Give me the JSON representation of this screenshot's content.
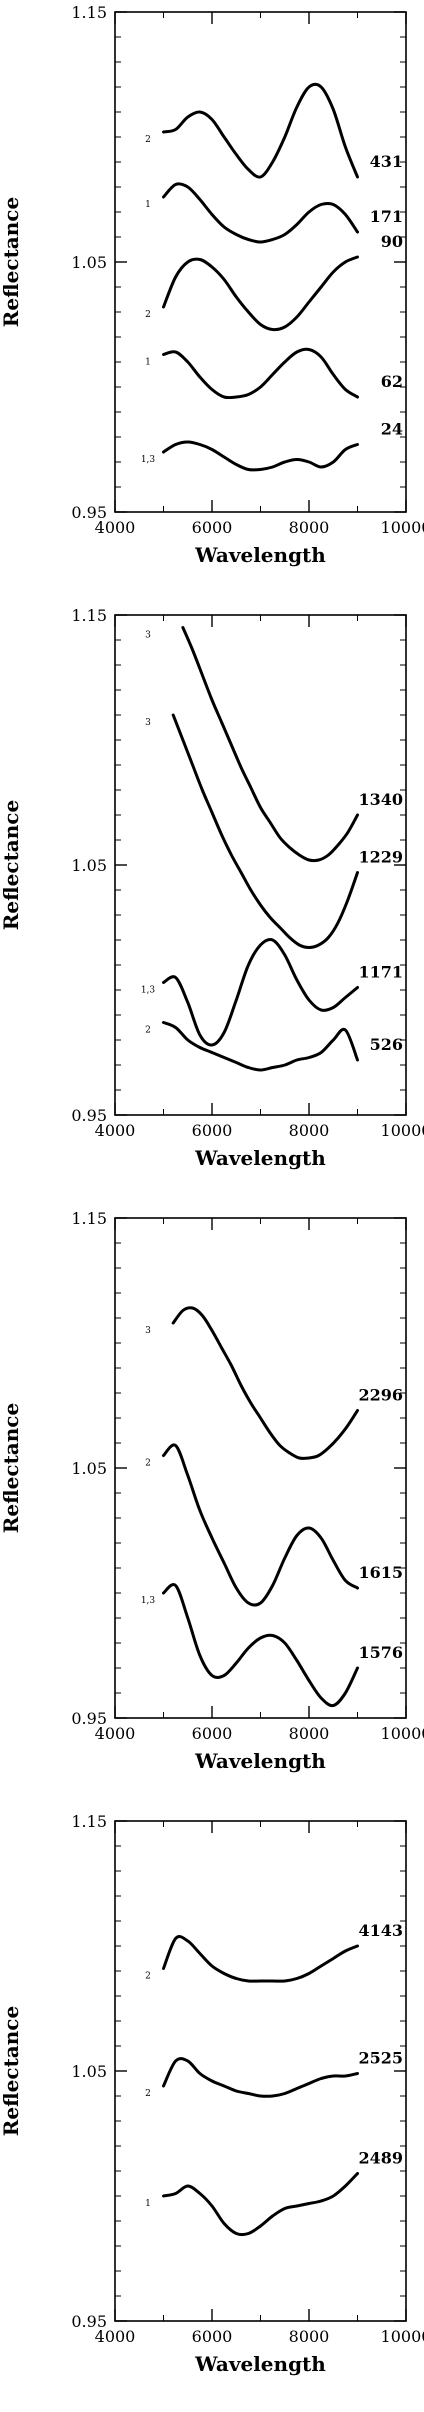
{
  "chart_data": [
    {
      "type": "line",
      "xlabel": "Wavelength",
      "ylabel": "Reflectance",
      "xlim": [
        4000,
        10000
      ],
      "ylim": [
        0.95,
        1.15
      ],
      "xticks": [
        "4000",
        "6000",
        "8000",
        "10000"
      ],
      "yticks": [
        "0.95",
        "1.05",
        "1.15"
      ],
      "series": [
        {
          "name": "431",
          "end_label": "431",
          "side_label": "2",
          "x": [
            5000,
            5250,
            5500,
            5750,
            6000,
            6250,
            6500,
            6750,
            7000,
            7250,
            7500,
            7750,
            8000,
            8250,
            8500,
            8750,
            9000
          ],
          "y": [
            1.102,
            1.103,
            1.108,
            1.11,
            1.107,
            1.1,
            1.093,
            1.087,
            1.084,
            1.09,
            1.1,
            1.112,
            1.12,
            1.12,
            1.111,
            1.096,
            1.084
          ]
        },
        {
          "name": "171",
          "end_label": "171",
          "side_label": "1",
          "x": [
            5000,
            5250,
            5500,
            5750,
            6000,
            6250,
            6500,
            6750,
            7000,
            7250,
            7500,
            7750,
            8000,
            8250,
            8500,
            8750,
            9000
          ],
          "y": [
            1.076,
            1.081,
            1.08,
            1.075,
            1.069,
            1.064,
            1.061,
            1.059,
            1.058,
            1.059,
            1.061,
            1.065,
            1.07,
            1.073,
            1.073,
            1.069,
            1.062
          ]
        },
        {
          "name": "90",
          "end_label": "90",
          "side_label": "2",
          "x": [
            5000,
            5250,
            5500,
            5750,
            6000,
            6250,
            6500,
            6750,
            7000,
            7250,
            7500,
            7750,
            8000,
            8250,
            8500,
            8750,
            9000
          ],
          "y": [
            1.032,
            1.044,
            1.05,
            1.051,
            1.048,
            1.043,
            1.036,
            1.03,
            1.025,
            1.023,
            1.024,
            1.028,
            1.034,
            1.04,
            1.046,
            1.05,
            1.052
          ]
        },
        {
          "name": "62",
          "end_label": "62",
          "side_label": "1",
          "x": [
            5000,
            5250,
            5500,
            5750,
            6000,
            6250,
            6500,
            6750,
            7000,
            7250,
            7500,
            7750,
            8000,
            8250,
            8500,
            8750,
            9000
          ],
          "y": [
            1.013,
            1.014,
            1.01,
            1.004,
            0.999,
            0.996,
            0.996,
            0.997,
            1.0,
            1.005,
            1.01,
            1.014,
            1.015,
            1.012,
            1.005,
            0.999,
            0.996
          ]
        },
        {
          "name": "24",
          "end_label": "24",
          "side_label": "1,3",
          "x": [
            5000,
            5250,
            5500,
            5750,
            6000,
            6250,
            6500,
            6750,
            7000,
            7250,
            7500,
            7750,
            8000,
            8250,
            8500,
            8750,
            9000
          ],
          "y": [
            0.974,
            0.977,
            0.978,
            0.977,
            0.975,
            0.972,
            0.969,
            0.967,
            0.967,
            0.968,
            0.97,
            0.971,
            0.97,
            0.968,
            0.97,
            0.975,
            0.977
          ]
        }
      ]
    },
    {
      "type": "line",
      "xlabel": "Wavelength",
      "ylabel": "Reflectance",
      "xlim": [
        4000,
        10000
      ],
      "ylim": [
        0.95,
        1.15
      ],
      "xticks": [
        "4000",
        "6000",
        "8000",
        "10000"
      ],
      "yticks": [
        "0.95",
        "1.05",
        "1.15"
      ],
      "series": [
        {
          "name": "1340",
          "end_label": "1340",
          "side_label": "3",
          "x": [
            5400,
            5600,
            5800,
            6000,
            6200,
            6400,
            6600,
            6800,
            7000,
            7200,
            7400,
            7600,
            7800,
            8000,
            8200,
            8400,
            8600,
            8800,
            9000
          ],
          "y": [
            1.145,
            1.136,
            1.126,
            1.116,
            1.107,
            1.098,
            1.089,
            1.081,
            1.073,
            1.067,
            1.061,
            1.057,
            1.054,
            1.052,
            1.052,
            1.054,
            1.058,
            1.063,
            1.07
          ]
        },
        {
          "name": "1229",
          "end_label": "1229",
          "side_label": "3",
          "x": [
            5200,
            5400,
            5600,
            5800,
            6000,
            6200,
            6400,
            6600,
            6800,
            7000,
            7200,
            7400,
            7600,
            7800,
            8000,
            8200,
            8400,
            8600,
            8800,
            9000
          ],
          "y": [
            1.11,
            1.1,
            1.09,
            1.08,
            1.071,
            1.062,
            1.054,
            1.047,
            1.04,
            1.034,
            1.029,
            1.025,
            1.021,
            1.018,
            1.017,
            1.018,
            1.021,
            1.027,
            1.036,
            1.047
          ]
        },
        {
          "name": "1171",
          "end_label": "1171",
          "side_label": "1,3",
          "x": [
            5000,
            5250,
            5500,
            5750,
            6000,
            6250,
            6500,
            6750,
            7000,
            7250,
            7500,
            7750,
            8000,
            8250,
            8500,
            8750,
            9000
          ],
          "y": [
            1.003,
            1.005,
            0.995,
            0.982,
            0.978,
            0.983,
            0.996,
            1.01,
            1.018,
            1.02,
            1.014,
            1.004,
            0.996,
            0.992,
            0.993,
            0.997,
            1.001
          ]
        },
        {
          "name": "526",
          "end_label": "526",
          "side_label": "2",
          "x": [
            5000,
            5250,
            5500,
            5750,
            6000,
            6250,
            6500,
            6750,
            7000,
            7250,
            7500,
            7750,
            8000,
            8250,
            8500,
            8750,
            9000
          ],
          "y": [
            0.987,
            0.985,
            0.98,
            0.977,
            0.975,
            0.973,
            0.971,
            0.969,
            0.968,
            0.969,
            0.97,
            0.972,
            0.973,
            0.975,
            0.98,
            0.984,
            0.972
          ]
        }
      ]
    },
    {
      "type": "line",
      "xlabel": "Wavelength",
      "ylabel": "Reflectance",
      "xlim": [
        4000,
        10000
      ],
      "ylim": [
        0.95,
        1.15
      ],
      "xticks": [
        "4000",
        "6000",
        "8000",
        "10000"
      ],
      "yticks": [
        "0.95",
        "1.05",
        "1.15"
      ],
      "series": [
        {
          "name": "2296",
          "end_label": "2296",
          "side_label": "3",
          "x": [
            5200,
            5400,
            5600,
            5800,
            6000,
            6200,
            6400,
            6600,
            6800,
            7000,
            7200,
            7400,
            7600,
            7800,
            8000,
            8200,
            8400,
            8600,
            8800,
            9000
          ],
          "y": [
            1.108,
            1.113,
            1.114,
            1.111,
            1.105,
            1.098,
            1.091,
            1.083,
            1.076,
            1.07,
            1.064,
            1.059,
            1.056,
            1.054,
            1.054,
            1.055,
            1.058,
            1.062,
            1.067,
            1.073
          ]
        },
        {
          "name": "1615",
          "end_label": "1615",
          "side_label": "2",
          "x": [
            5000,
            5250,
            5500,
            5750,
            6000,
            6250,
            6500,
            6750,
            7000,
            7250,
            7500,
            7750,
            8000,
            8250,
            8500,
            8750,
            9000
          ],
          "y": [
            1.055,
            1.059,
            1.047,
            1.033,
            1.022,
            1.012,
            1.002,
            0.996,
            0.996,
            1.003,
            1.014,
            1.023,
            1.026,
            1.022,
            1.013,
            1.005,
            1.002
          ]
        },
        {
          "name": "1576",
          "end_label": "1576",
          "side_label": "1,3",
          "x": [
            5000,
            5250,
            5500,
            5750,
            6000,
            6250,
            6500,
            6750,
            7000,
            7250,
            7500,
            7750,
            8000,
            8250,
            8500,
            8750,
            9000
          ],
          "y": [
            1.0,
            1.003,
            0.99,
            0.975,
            0.967,
            0.967,
            0.972,
            0.978,
            0.982,
            0.983,
            0.98,
            0.973,
            0.965,
            0.958,
            0.955,
            0.96,
            0.97
          ]
        }
      ]
    },
    {
      "type": "line",
      "xlabel": "Wavelength",
      "ylabel": "Reflectance",
      "xlim": [
        4000,
        10000
      ],
      "ylim": [
        0.95,
        1.15
      ],
      "xticks": [
        "4000",
        "6000",
        "8000",
        "10000"
      ],
      "yticks": [
        "0.95",
        "1.05",
        "1.15"
      ],
      "series": [
        {
          "name": "4143",
          "end_label": "4143",
          "side_label": "2",
          "x": [
            5000,
            5250,
            5500,
            5750,
            6000,
            6250,
            6500,
            6750,
            7000,
            7250,
            7500,
            7750,
            8000,
            8250,
            8500,
            8750,
            9000
          ],
          "y": [
            1.091,
            1.103,
            1.102,
            1.097,
            1.092,
            1.089,
            1.087,
            1.086,
            1.086,
            1.086,
            1.086,
            1.087,
            1.089,
            1.092,
            1.095,
            1.098,
            1.1
          ]
        },
        {
          "name": "2525",
          "end_label": "2525",
          "side_label": "2",
          "x": [
            5000,
            5250,
            5500,
            5750,
            6000,
            6250,
            6500,
            6750,
            7000,
            7250,
            7500,
            7750,
            8000,
            8250,
            8500,
            8750,
            9000
          ],
          "y": [
            1.044,
            1.054,
            1.054,
            1.049,
            1.046,
            1.044,
            1.042,
            1.041,
            1.04,
            1.04,
            1.041,
            1.043,
            1.045,
            1.047,
            1.048,
            1.048,
            1.049
          ]
        },
        {
          "name": "2489",
          "end_label": "2489",
          "side_label": "1",
          "x": [
            5000,
            5250,
            5500,
            5750,
            6000,
            6250,
            6500,
            6750,
            7000,
            7250,
            7500,
            7750,
            8000,
            8250,
            8500,
            8750,
            9000
          ],
          "y": [
            1.0,
            1.001,
            1.004,
            1.001,
            0.996,
            0.989,
            0.985,
            0.985,
            0.988,
            0.992,
            0.995,
            0.996,
            0.997,
            0.998,
            1.0,
            1.004,
            1.009
          ]
        }
      ]
    }
  ]
}
